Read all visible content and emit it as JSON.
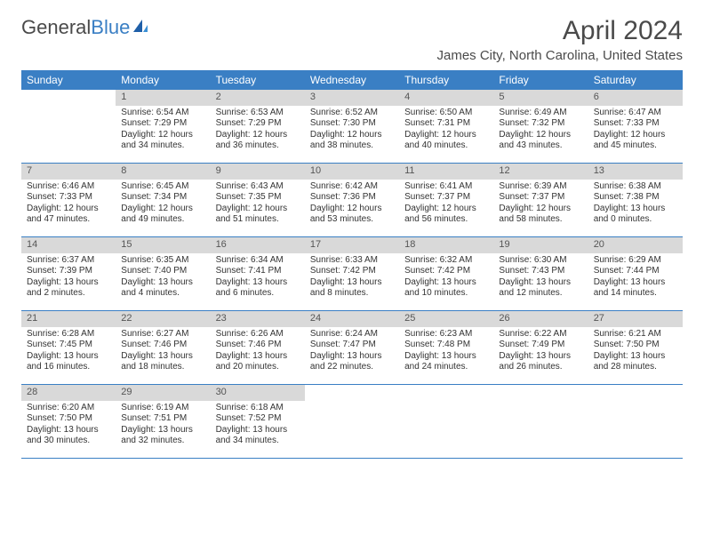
{
  "brand": {
    "part1": "General",
    "part2": "Blue"
  },
  "title": "April 2024",
  "location": "James City, North Carolina, United States",
  "colors": {
    "header_bg": "#3a7fc4",
    "header_text": "#ffffff",
    "daynum_bg": "#d9d9d9",
    "text": "#333333",
    "background": "#ffffff"
  },
  "day_headers": [
    "Sunday",
    "Monday",
    "Tuesday",
    "Wednesday",
    "Thursday",
    "Friday",
    "Saturday"
  ],
  "weeks": [
    [
      {
        "empty": true
      },
      {
        "num": "1",
        "sunrise": "Sunrise: 6:54 AM",
        "sunset": "Sunset: 7:29 PM",
        "day1": "Daylight: 12 hours",
        "day2": "and 34 minutes."
      },
      {
        "num": "2",
        "sunrise": "Sunrise: 6:53 AM",
        "sunset": "Sunset: 7:29 PM",
        "day1": "Daylight: 12 hours",
        "day2": "and 36 minutes."
      },
      {
        "num": "3",
        "sunrise": "Sunrise: 6:52 AM",
        "sunset": "Sunset: 7:30 PM",
        "day1": "Daylight: 12 hours",
        "day2": "and 38 minutes."
      },
      {
        "num": "4",
        "sunrise": "Sunrise: 6:50 AM",
        "sunset": "Sunset: 7:31 PM",
        "day1": "Daylight: 12 hours",
        "day2": "and 40 minutes."
      },
      {
        "num": "5",
        "sunrise": "Sunrise: 6:49 AM",
        "sunset": "Sunset: 7:32 PM",
        "day1": "Daylight: 12 hours",
        "day2": "and 43 minutes."
      },
      {
        "num": "6",
        "sunrise": "Sunrise: 6:47 AM",
        "sunset": "Sunset: 7:33 PM",
        "day1": "Daylight: 12 hours",
        "day2": "and 45 minutes."
      }
    ],
    [
      {
        "num": "7",
        "sunrise": "Sunrise: 6:46 AM",
        "sunset": "Sunset: 7:33 PM",
        "day1": "Daylight: 12 hours",
        "day2": "and 47 minutes."
      },
      {
        "num": "8",
        "sunrise": "Sunrise: 6:45 AM",
        "sunset": "Sunset: 7:34 PM",
        "day1": "Daylight: 12 hours",
        "day2": "and 49 minutes."
      },
      {
        "num": "9",
        "sunrise": "Sunrise: 6:43 AM",
        "sunset": "Sunset: 7:35 PM",
        "day1": "Daylight: 12 hours",
        "day2": "and 51 minutes."
      },
      {
        "num": "10",
        "sunrise": "Sunrise: 6:42 AM",
        "sunset": "Sunset: 7:36 PM",
        "day1": "Daylight: 12 hours",
        "day2": "and 53 minutes."
      },
      {
        "num": "11",
        "sunrise": "Sunrise: 6:41 AM",
        "sunset": "Sunset: 7:37 PM",
        "day1": "Daylight: 12 hours",
        "day2": "and 56 minutes."
      },
      {
        "num": "12",
        "sunrise": "Sunrise: 6:39 AM",
        "sunset": "Sunset: 7:37 PM",
        "day1": "Daylight: 12 hours",
        "day2": "and 58 minutes."
      },
      {
        "num": "13",
        "sunrise": "Sunrise: 6:38 AM",
        "sunset": "Sunset: 7:38 PM",
        "day1": "Daylight: 13 hours",
        "day2": "and 0 minutes."
      }
    ],
    [
      {
        "num": "14",
        "sunrise": "Sunrise: 6:37 AM",
        "sunset": "Sunset: 7:39 PM",
        "day1": "Daylight: 13 hours",
        "day2": "and 2 minutes."
      },
      {
        "num": "15",
        "sunrise": "Sunrise: 6:35 AM",
        "sunset": "Sunset: 7:40 PM",
        "day1": "Daylight: 13 hours",
        "day2": "and 4 minutes."
      },
      {
        "num": "16",
        "sunrise": "Sunrise: 6:34 AM",
        "sunset": "Sunset: 7:41 PM",
        "day1": "Daylight: 13 hours",
        "day2": "and 6 minutes."
      },
      {
        "num": "17",
        "sunrise": "Sunrise: 6:33 AM",
        "sunset": "Sunset: 7:42 PM",
        "day1": "Daylight: 13 hours",
        "day2": "and 8 minutes."
      },
      {
        "num": "18",
        "sunrise": "Sunrise: 6:32 AM",
        "sunset": "Sunset: 7:42 PM",
        "day1": "Daylight: 13 hours",
        "day2": "and 10 minutes."
      },
      {
        "num": "19",
        "sunrise": "Sunrise: 6:30 AM",
        "sunset": "Sunset: 7:43 PM",
        "day1": "Daylight: 13 hours",
        "day2": "and 12 minutes."
      },
      {
        "num": "20",
        "sunrise": "Sunrise: 6:29 AM",
        "sunset": "Sunset: 7:44 PM",
        "day1": "Daylight: 13 hours",
        "day2": "and 14 minutes."
      }
    ],
    [
      {
        "num": "21",
        "sunrise": "Sunrise: 6:28 AM",
        "sunset": "Sunset: 7:45 PM",
        "day1": "Daylight: 13 hours",
        "day2": "and 16 minutes."
      },
      {
        "num": "22",
        "sunrise": "Sunrise: 6:27 AM",
        "sunset": "Sunset: 7:46 PM",
        "day1": "Daylight: 13 hours",
        "day2": "and 18 minutes."
      },
      {
        "num": "23",
        "sunrise": "Sunrise: 6:26 AM",
        "sunset": "Sunset: 7:46 PM",
        "day1": "Daylight: 13 hours",
        "day2": "and 20 minutes."
      },
      {
        "num": "24",
        "sunrise": "Sunrise: 6:24 AM",
        "sunset": "Sunset: 7:47 PM",
        "day1": "Daylight: 13 hours",
        "day2": "and 22 minutes."
      },
      {
        "num": "25",
        "sunrise": "Sunrise: 6:23 AM",
        "sunset": "Sunset: 7:48 PM",
        "day1": "Daylight: 13 hours",
        "day2": "and 24 minutes."
      },
      {
        "num": "26",
        "sunrise": "Sunrise: 6:22 AM",
        "sunset": "Sunset: 7:49 PM",
        "day1": "Daylight: 13 hours",
        "day2": "and 26 minutes."
      },
      {
        "num": "27",
        "sunrise": "Sunrise: 6:21 AM",
        "sunset": "Sunset: 7:50 PM",
        "day1": "Daylight: 13 hours",
        "day2": "and 28 minutes."
      }
    ],
    [
      {
        "num": "28",
        "sunrise": "Sunrise: 6:20 AM",
        "sunset": "Sunset: 7:50 PM",
        "day1": "Daylight: 13 hours",
        "day2": "and 30 minutes."
      },
      {
        "num": "29",
        "sunrise": "Sunrise: 6:19 AM",
        "sunset": "Sunset: 7:51 PM",
        "day1": "Daylight: 13 hours",
        "day2": "and 32 minutes."
      },
      {
        "num": "30",
        "sunrise": "Sunrise: 6:18 AM",
        "sunset": "Sunset: 7:52 PM",
        "day1": "Daylight: 13 hours",
        "day2": "and 34 minutes."
      },
      {
        "empty": true
      },
      {
        "empty": true
      },
      {
        "empty": true
      },
      {
        "empty": true
      }
    ]
  ]
}
